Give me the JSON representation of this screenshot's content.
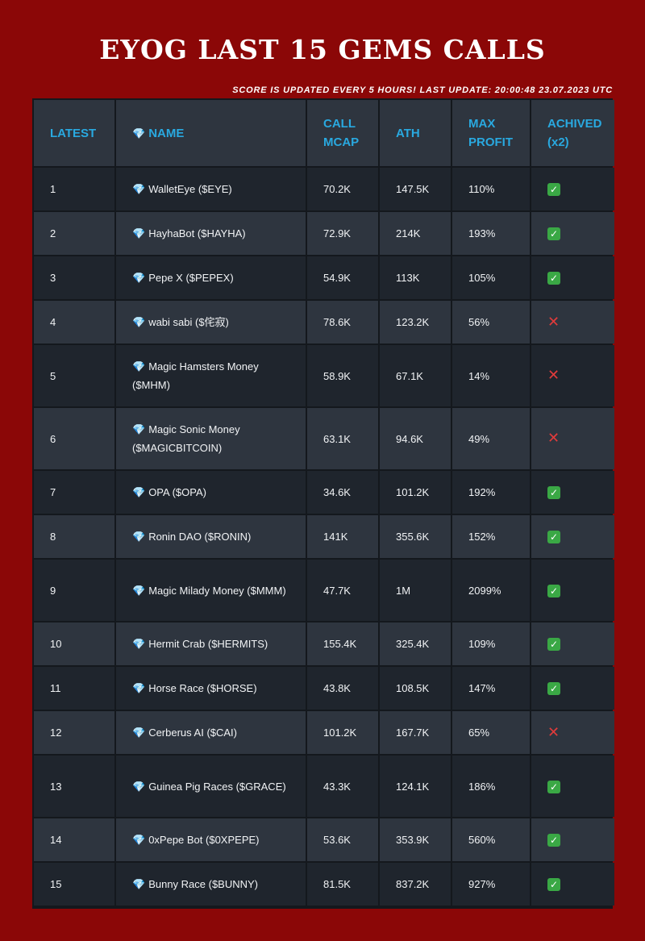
{
  "title": "EYOG LAST 15 GEMS CALLS",
  "update_note": "SCORE IS UPDATED EVERY 5 HOURS! LAST UPDATE: 20:00:48 23.07.2023 UTC",
  "colors": {
    "background": "#8b0707",
    "header_text": "#29a9e0",
    "row_dark": "#1f252d",
    "row_light": "#2e353f"
  },
  "columns": {
    "latest": "LATEST",
    "name_icon": "💎",
    "name": "NAME",
    "call_mcap": "CALL MCAP",
    "ath": "ATH",
    "max_profit": "MAX PROFIT",
    "achived": "ACHIVED",
    "achived_sub": "(x2)"
  },
  "rows": [
    {
      "latest": "1",
      "icon": "💎",
      "name": "WalletEye ($EYE)",
      "call_mcap": "70.2K",
      "ath": "147.5K",
      "max_profit": "110%",
      "achived": "✅"
    },
    {
      "latest": "2",
      "icon": "💎",
      "name": "HayhaBot ($HAYHA)",
      "call_mcap": "72.9K",
      "ath": "214K",
      "max_profit": "193%",
      "achived": "✅"
    },
    {
      "latest": "3",
      "icon": "💎",
      "name": "Pepe X ($PEPEX)",
      "call_mcap": "54.9K",
      "ath": "113K",
      "max_profit": "105%",
      "achived": "✅"
    },
    {
      "latest": "4",
      "icon": "💎",
      "name": "wabi sabi ($侘寂)",
      "call_mcap": "78.6K",
      "ath": "123.2K",
      "max_profit": "56%",
      "achived": "❌"
    },
    {
      "latest": "5",
      "icon": "💎",
      "name": "Magic Hamsters Money ($MHM)",
      "call_mcap": "58.9K",
      "ath": "67.1K",
      "max_profit": "14%",
      "achived": "❌"
    },
    {
      "latest": "6",
      "icon": "💎",
      "name": "Magic Sonic Money ($MAGICBITCOIN)",
      "call_mcap": "63.1K",
      "ath": "94.6K",
      "max_profit": "49%",
      "achived": "❌"
    },
    {
      "latest": "7",
      "icon": "💎",
      "name": "OPA ($OPA)",
      "call_mcap": "34.6K",
      "ath": "101.2K",
      "max_profit": "192%",
      "achived": "✅"
    },
    {
      "latest": "8",
      "icon": "💎",
      "name": "Ronin DAO ($RONIN)",
      "call_mcap": "141K",
      "ath": "355.6K",
      "max_profit": "152%",
      "achived": "✅"
    },
    {
      "latest": "9",
      "icon": "💎",
      "name": "Magic Milady Money ($MMM)",
      "call_mcap": "47.7K",
      "ath": "1M",
      "max_profit": "2099%",
      "achived": "✅"
    },
    {
      "latest": "10",
      "icon": "💎",
      "name": "Hermit Crab ($HERMITS)",
      "call_mcap": "155.4K",
      "ath": "325.4K",
      "max_profit": "109%",
      "achived": "✅"
    },
    {
      "latest": "11",
      "icon": "💎",
      "name": "Horse Race ($HORSE)",
      "call_mcap": "43.8K",
      "ath": "108.5K",
      "max_profit": "147%",
      "achived": "✅"
    },
    {
      "latest": "12",
      "icon": "💎",
      "name": "Cerberus AI ($CAI)",
      "call_mcap": "101.2K",
      "ath": "167.7K",
      "max_profit": "65%",
      "achived": "❌"
    },
    {
      "latest": "13",
      "icon": "💎",
      "name": "Guinea Pig Races ($GRACE)",
      "call_mcap": "43.3K",
      "ath": "124.1K",
      "max_profit": "186%",
      "achived": "✅"
    },
    {
      "latest": "14",
      "icon": "💎",
      "name": "0xPepe Bot ($0XPEPE)",
      "call_mcap": "53.6K",
      "ath": "353.9K",
      "max_profit": "560%",
      "achived": "✅"
    },
    {
      "latest": "15",
      "icon": "💎",
      "name": "Bunny Race ($BUNNY)",
      "call_mcap": "81.5K",
      "ath": "837.2K",
      "max_profit": "927%",
      "achived": "✅"
    }
  ]
}
